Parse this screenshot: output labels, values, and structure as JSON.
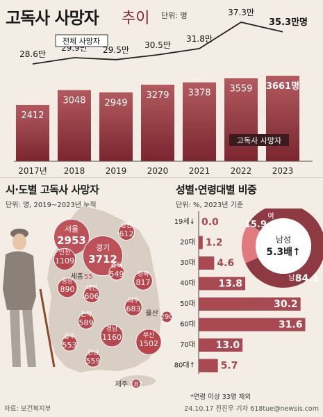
{
  "title": {
    "main": "고독사 사망자",
    "sub": "추이",
    "unit": "단위: 명"
  },
  "chart_data": [
    {
      "type": "bar",
      "categories": [
        "2017년",
        "2018",
        "2019",
        "2020",
        "2021",
        "2022",
        "2023"
      ],
      "series": [
        {
          "name": "고독사 사망자",
          "values": [
            2412,
            3048,
            2949,
            3279,
            3378,
            3559,
            3661
          ],
          "value_labels": [
            "2412",
            "3048",
            "2949",
            "3279",
            "3378",
            "3559",
            "3661명"
          ]
        },
        {
          "name": "전체 사망자",
          "values": [
            28.6,
            29.9,
            29.5,
            30.5,
            31.8,
            37.3,
            35.3
          ],
          "value_labels": [
            "28.6만",
            "29.9만",
            "29.5만",
            "30.5만",
            "31.8만",
            "37.3만",
            "35.3만명"
          ]
        }
      ],
      "legend": {
        "line": "전체 사망자",
        "bar": "고독사 사망자"
      }
    },
    {
      "type": "bubble",
      "title": "시·도별 고독사 사망자",
      "subtitle": "단위: 명, 2019~2023년 누적",
      "regions": [
        {
          "name": "서울",
          "value": 2953
        },
        {
          "name": "경기",
          "value": 3712
        },
        {
          "name": "인천",
          "value": 1109
        },
        {
          "name": "강원",
          "value": 612
        },
        {
          "name": "충북",
          "value": 549
        },
        {
          "name": "세종",
          "value": 55
        },
        {
          "name": "충남",
          "value": 890
        },
        {
          "name": "대전",
          "value": 606
        },
        {
          "name": "경북",
          "value": 817
        },
        {
          "name": "대구",
          "value": 683
        },
        {
          "name": "전북",
          "value": 589
        },
        {
          "name": "울산",
          "value": 290
        },
        {
          "name": "광주",
          "value": 553
        },
        {
          "name": "경남",
          "value": 1160
        },
        {
          "name": "부산",
          "value": 1502
        },
        {
          "name": "전남",
          "value": 559
        },
        {
          "name": "제주",
          "value": 187
        }
      ]
    },
    {
      "type": "bar",
      "orientation": "horizontal",
      "title": "성별·연령대별 비중",
      "subtitle": "단위: %, 2023년 기준",
      "categories": [
        "19세↓",
        "20대",
        "30대",
        "40대",
        "50대",
        "60대",
        "70대",
        "80대↑"
      ],
      "values": [
        0.0,
        1.2,
        4.6,
        13.8,
        30.2,
        31.6,
        13.0,
        5.7
      ],
      "value_labels": [
        "0.0",
        "1.2",
        "4.6",
        "13.8",
        "30.2",
        "31.6",
        "13.0",
        "5.7"
      ],
      "xlim": [
        0,
        35
      ],
      "footnote": "*연령 미상 33명 제외"
    },
    {
      "type": "pie",
      "slices": [
        {
          "label": "남",
          "value": 84.1
        },
        {
          "label": "여",
          "value": 15.9
        }
      ],
      "center_label": [
        "남성",
        "5.3배↑"
      ]
    }
  ],
  "source": "자료: 보건복지부",
  "credit": "24.10.17 전진우 기자 618tue@newsis.com",
  "colors": {
    "bar_top": "#b25a5e",
    "bar_bottom": "#7a2530",
    "line": "#222222",
    "pie_male": "#8e3a43",
    "pie_female": "#e07a7e",
    "bubble": "#b9454d"
  }
}
